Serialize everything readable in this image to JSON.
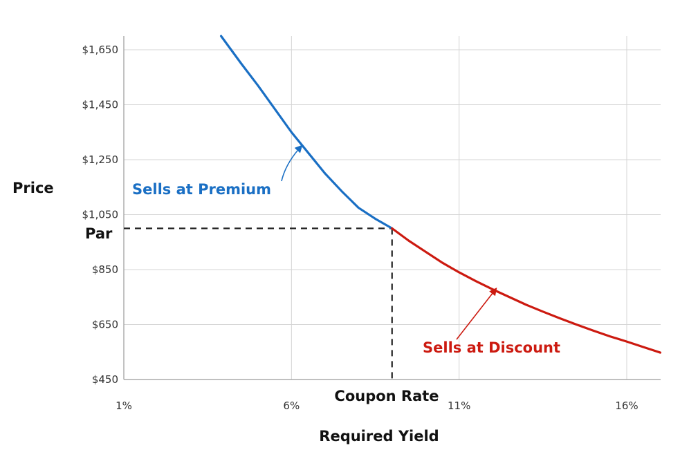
{
  "chart_data": {
    "type": "line",
    "xlabel": "Required Yield",
    "ylabel": "Price",
    "xlim": [
      1,
      17
    ],
    "ylim": [
      450,
      1700
    ],
    "x_ticks": [
      {
        "value": 1,
        "label": "1%"
      },
      {
        "value": 6,
        "label": "6%"
      },
      {
        "value": 11,
        "label": "11%"
      },
      {
        "value": 16,
        "label": "16%"
      }
    ],
    "y_ticks": [
      {
        "value": 450,
        "label": "$450"
      },
      {
        "value": 650,
        "label": "$650"
      },
      {
        "value": 850,
        "label": "$850"
      },
      {
        "value": 1050,
        "label": "$1,050"
      },
      {
        "value": 1250,
        "label": "$1,250"
      },
      {
        "value": 1450,
        "label": "$1,450"
      },
      {
        "value": 1650,
        "label": "$1,650"
      }
    ],
    "grid": true,
    "series": [
      {
        "color": "#1a6fc4",
        "x": [
          3.9,
          4.5,
          5,
          5.5,
          6,
          6.5,
          7,
          7.5,
          8,
          8.5,
          9
        ],
        "values": [
          1700,
          1600,
          1520,
          1435,
          1350,
          1275,
          1200,
          1135,
          1075,
          1035,
          1000
        ]
      },
      {
        "color": "#cc1a10",
        "x": [
          9,
          9.5,
          10,
          10.5,
          11,
          11.5,
          12,
          12.5,
          13,
          13.5,
          14,
          14.5,
          15,
          15.5,
          16,
          16.5,
          17
        ],
        "values": [
          1000,
          955,
          915,
          875,
          840,
          808,
          778,
          750,
          722,
          697,
          673,
          650,
          628,
          607,
          588,
          568,
          548
        ]
      }
    ],
    "reference": {
      "x": 9,
      "y": 1000,
      "color": "#222222"
    },
    "annotations": {
      "par": {
        "text": "Par",
        "value": 1000
      },
      "coupon_rate": {
        "text": "Coupon Rate",
        "value": 9
      },
      "premium": {
        "text": "Sells at Premium",
        "color": "#1a6fc4",
        "target": [
          6.3,
          1300
        ]
      },
      "discount": {
        "text": "Sells at Discount",
        "color": "#cc1a10",
        "target": [
          12.1,
          780
        ]
      }
    }
  }
}
